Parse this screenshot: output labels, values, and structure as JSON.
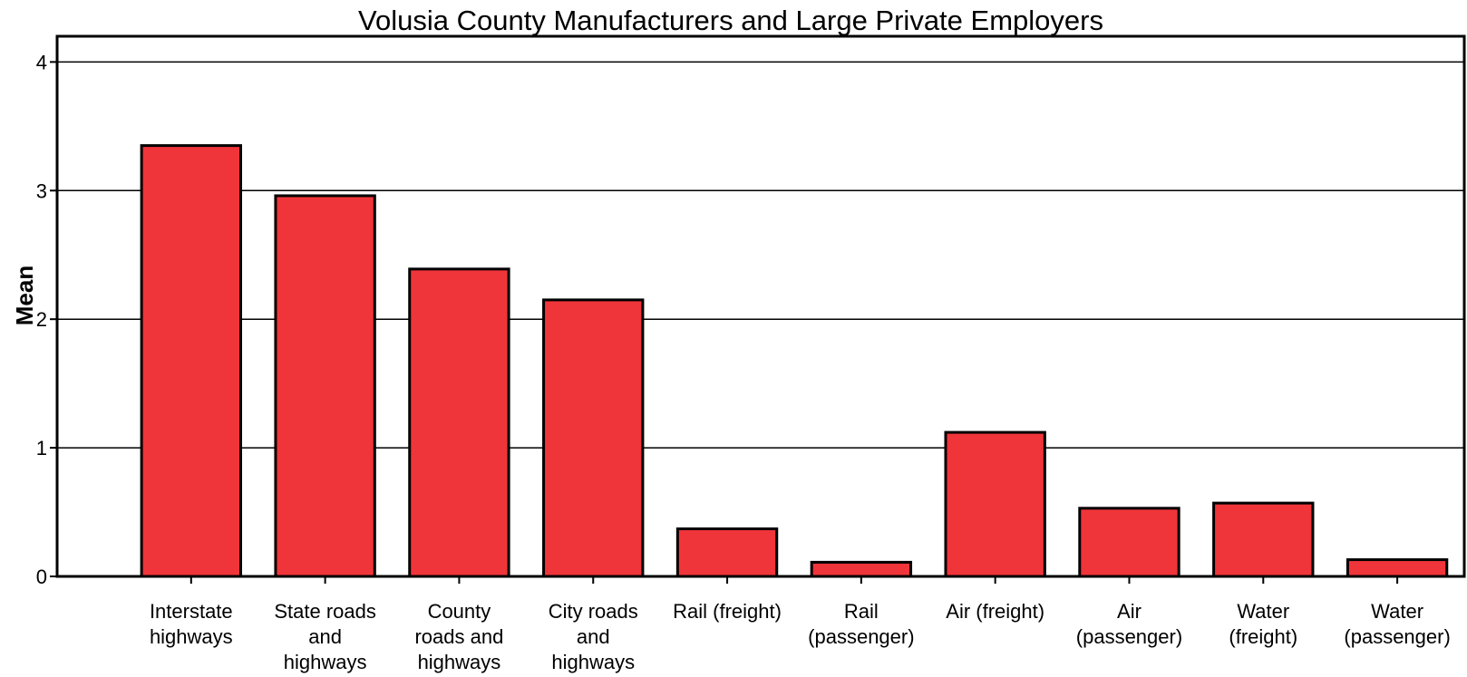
{
  "chart_data": {
    "type": "bar",
    "title": "Volusia County Manufacturers and Large Private Employers",
    "ylabel": "Mean",
    "xlabel": "",
    "ylim": [
      0,
      4.2
    ],
    "yticks": [
      "0",
      "1",
      "2",
      "3",
      "4"
    ],
    "grid": true,
    "categories": [
      [
        "Interstate",
        "highways"
      ],
      [
        "State roads",
        "and",
        "highways"
      ],
      [
        "County",
        "roads and",
        "highways"
      ],
      [
        "City roads",
        "and",
        "highways"
      ],
      [
        "Rail (freight)"
      ],
      [
        "Rail",
        "(passenger)"
      ],
      [
        "Air (freight)"
      ],
      [
        "Air",
        "(passenger)"
      ],
      [
        "Water",
        "(freight)"
      ],
      [
        "Water",
        "(passenger)"
      ]
    ],
    "values": [
      3.35,
      2.96,
      2.39,
      2.15,
      0.37,
      0.11,
      1.12,
      0.53,
      0.57,
      0.13
    ],
    "colors": {
      "bar": "#ef353a",
      "bar_edge": "#000000",
      "grid": "#000000"
    }
  }
}
